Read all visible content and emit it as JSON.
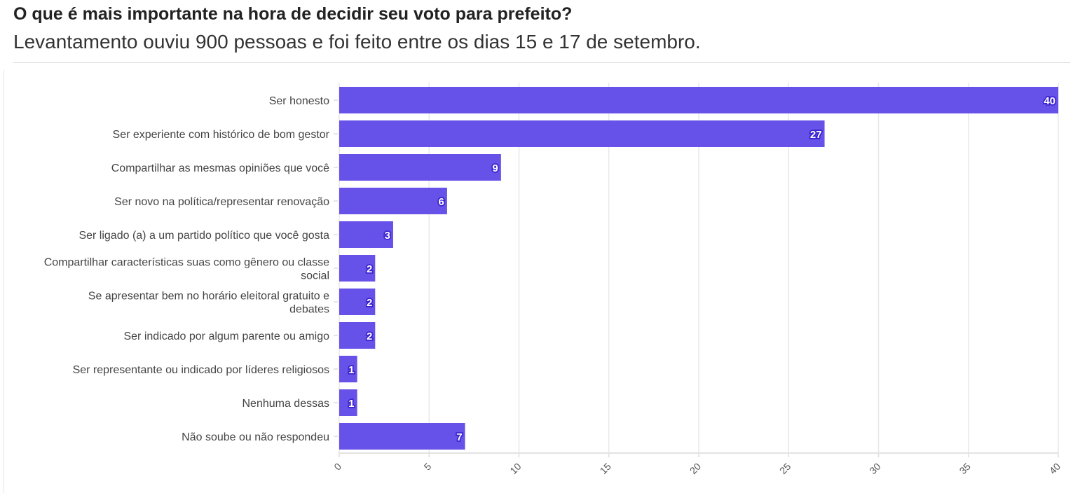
{
  "header": {
    "title": "O que é mais importante na hora de decidir seu voto para prefeito?",
    "subtitle": "Levantamento ouviu 900 pessoas e foi feito entre os dias 15 e 17 de setembro."
  },
  "chart_data": {
    "type": "bar",
    "orientation": "horizontal",
    "categories": [
      [
        "Ser honesto"
      ],
      [
        "Ser experiente com histórico de bom gestor"
      ],
      [
        "Compartilhar as mesmas opiniões que você"
      ],
      [
        "Ser novo na política/representar renovação"
      ],
      [
        "Ser ligado (a) a um partido político que você gosta"
      ],
      [
        "Compartilhar características suas como gênero ou classe",
        "social"
      ],
      [
        "Se apresentar bem no horário eleitoral gratuito e",
        "debates"
      ],
      [
        "Ser indicado por algum parente ou amigo"
      ],
      [
        "Ser representante ou indicado por líderes religiosos"
      ],
      [
        "Nenhuma dessas"
      ],
      [
        "Não soube ou não respondeu"
      ]
    ],
    "values": [
      40,
      27,
      9,
      6,
      3,
      2,
      2,
      2,
      1,
      1,
      7
    ],
    "xlim": [
      0,
      40
    ],
    "xticks": [
      "0",
      "5",
      "10",
      "15",
      "20",
      "25",
      "30",
      "35",
      "40"
    ],
    "grid": true,
    "bar_color": "#6652e9",
    "label_outline_color": "#3b22d0"
  }
}
